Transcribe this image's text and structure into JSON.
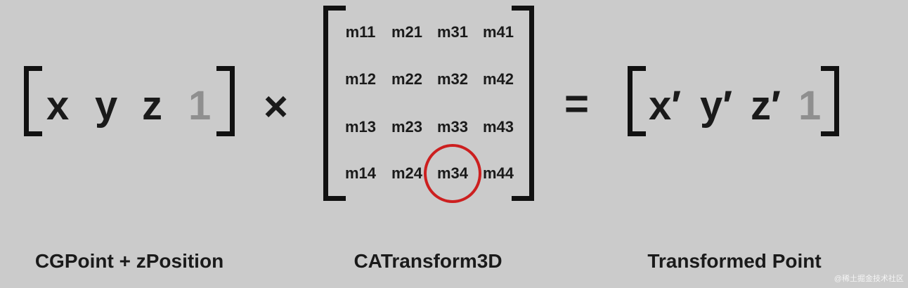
{
  "input_point": {
    "x": "x",
    "y": "y",
    "z": "z",
    "w": "1"
  },
  "operators": {
    "multiply": "×",
    "equals": "="
  },
  "matrix": {
    "rows": [
      [
        "m11",
        "m21",
        "m31",
        "m41"
      ],
      [
        "m12",
        "m22",
        "m32",
        "m42"
      ],
      [
        "m13",
        "m23",
        "m33",
        "m43"
      ],
      [
        "m14",
        "m24",
        "m34",
        "m44"
      ]
    ],
    "highlighted_cell": "m34",
    "highlight_color": "#cc1f1f"
  },
  "output_point": {
    "x": "x′",
    "y": "y′",
    "z": "z′",
    "w": "1"
  },
  "captions": {
    "input": "CGPoint + zPosition",
    "matrix": "CATransform3D",
    "output": "Transformed Point"
  },
  "watermark": "@稀土掘金技术社区",
  "colors": {
    "background": "#cbcbcb",
    "ink": "#1a1a1a",
    "homogeneous_one": "#8f8f8f"
  }
}
